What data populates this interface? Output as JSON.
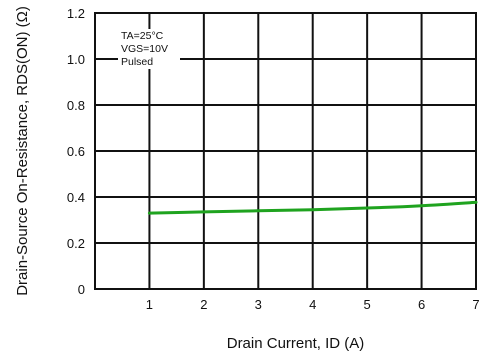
{
  "chart_data": {
    "type": "line",
    "title": "",
    "xlabel": "Drain Current, ID (A)",
    "ylabel": "Drain-Source On-Resistance, RDS(ON) (Ω)",
    "xlim": [
      0,
      7
    ],
    "ylim": [
      0,
      1.2
    ],
    "x_ticks": [
      1,
      2,
      3,
      4,
      5,
      6,
      7
    ],
    "x_tick_labels": [
      "1",
      "2",
      "3",
      "4",
      "5",
      "6",
      "7"
    ],
    "y_ticks": [
      0,
      0.2,
      0.4,
      0.6,
      0.8,
      1.0,
      1.2
    ],
    "y_tick_labels": [
      "0",
      "0.2",
      "0.4",
      "0.6",
      "0.8",
      "1.0",
      "1.2"
    ],
    "grid": true,
    "annotations": [
      "TA=25°C",
      "VGS=10V",
      "Pulsed"
    ],
    "series": [
      {
        "color": "#1fa31f",
        "x": [
          1,
          2,
          3,
          4,
          5,
          6,
          7
        ],
        "y": [
          0.33,
          0.335,
          0.34,
          0.345,
          0.352,
          0.362,
          0.377
        ]
      }
    ]
  }
}
